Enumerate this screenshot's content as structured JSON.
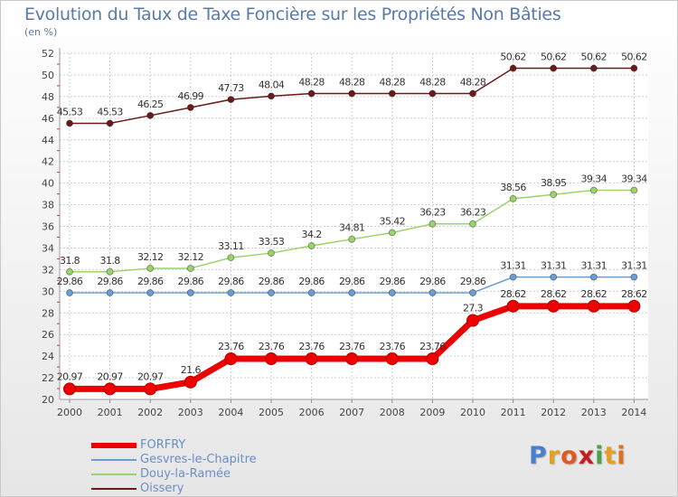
{
  "title": "Evolution du Taux de Taxe Foncière sur les Propriétés Non Bâties",
  "subtitle": "(en %)",
  "logo_text": "Proxiti",
  "logo_colors": [
    "#4a7fd0",
    "#e6a020",
    "#e05a20",
    "#c02020",
    "#4aa34a",
    "#e6a020",
    "#e07020"
  ],
  "chart_data": {
    "type": "line",
    "title": "Evolution du Taux de Taxe Foncière sur les Propriétés Non Bâties",
    "ylabel": "(en %)",
    "xlabel": "",
    "x": [
      "2000",
      "2001",
      "2002",
      "2003",
      "2004",
      "2005",
      "2006",
      "2007",
      "2008",
      "2009",
      "2010",
      "2011",
      "2012",
      "2013",
      "2014"
    ],
    "ylim": [
      20,
      52
    ],
    "yticks": [
      20,
      22,
      24,
      26,
      28,
      30,
      32,
      34,
      36,
      38,
      40,
      42,
      44,
      46,
      48,
      50,
      52
    ],
    "grid": true,
    "legend": "bottom-left",
    "series": [
      {
        "name": "Oissery",
        "color": "#6b1a1a",
        "values": [
          45.53,
          45.53,
          46.25,
          46.99,
          47.73,
          48.04,
          48.28,
          48.28,
          48.28,
          48.28,
          48.28,
          50.62,
          50.62,
          50.62,
          50.62
        ],
        "labels": [
          "45.53",
          "45.53",
          "46.25",
          "46.99",
          "47.73",
          "48.04",
          "48.28",
          "48.28",
          "48.28",
          "48.28",
          "48.28",
          "50.62",
          "50.62",
          "50.62",
          "50.62"
        ]
      },
      {
        "name": "Douy-la-Ramée",
        "color": "#9ad46a",
        "values": [
          31.8,
          31.8,
          32.12,
          32.12,
          33.11,
          33.53,
          34.2,
          34.81,
          35.42,
          36.23,
          36.23,
          38.56,
          38.95,
          39.34,
          39.34
        ],
        "labels": [
          "31.8",
          "31.8",
          "32.12",
          "32.12",
          "33.11",
          "33.53",
          "34.2",
          "34.81",
          "35.42",
          "36.23",
          "36.23",
          "38.56",
          "38.95",
          "39.34",
          "39.34"
        ]
      },
      {
        "name": "Gesvres-le-Chapitre",
        "color": "#6a9ed4",
        "values": [
          29.86,
          29.86,
          29.86,
          29.86,
          29.86,
          29.86,
          29.86,
          29.86,
          29.86,
          29.86,
          29.86,
          31.31,
          31.31,
          31.31,
          31.31
        ],
        "labels": [
          "29.86",
          "29.86",
          "29.86",
          "29.86",
          "29.86",
          "29.86",
          "29.86",
          "29.86",
          "29.86",
          "29.86",
          "29.86",
          "31.31",
          "31.31",
          "31.31",
          "31.31"
        ]
      },
      {
        "name": "FORFRY",
        "color": "#ee0000",
        "values": [
          20.97,
          20.97,
          20.97,
          21.6,
          23.76,
          23.76,
          23.76,
          23.76,
          23.76,
          23.76,
          27.3,
          28.62,
          28.62,
          28.62,
          28.62
        ],
        "labels": [
          "20.97",
          "20.97",
          "20.97",
          "21.6",
          "23.76",
          "23.76",
          "23.76",
          "23.76",
          "23.76",
          "23.76",
          "27.3",
          "28.62",
          "28.62",
          "28.62",
          "28.62"
        ]
      }
    ]
  },
  "legend": [
    {
      "label": "FORFRY",
      "color": "#ee0000"
    },
    {
      "label": "Gesvres-le-Chapitre",
      "color": "#6a9ed4"
    },
    {
      "label": "Douy-la-Ramée",
      "color": "#9ad46a"
    },
    {
      "label": "Oissery",
      "color": "#6b1a1a"
    }
  ]
}
